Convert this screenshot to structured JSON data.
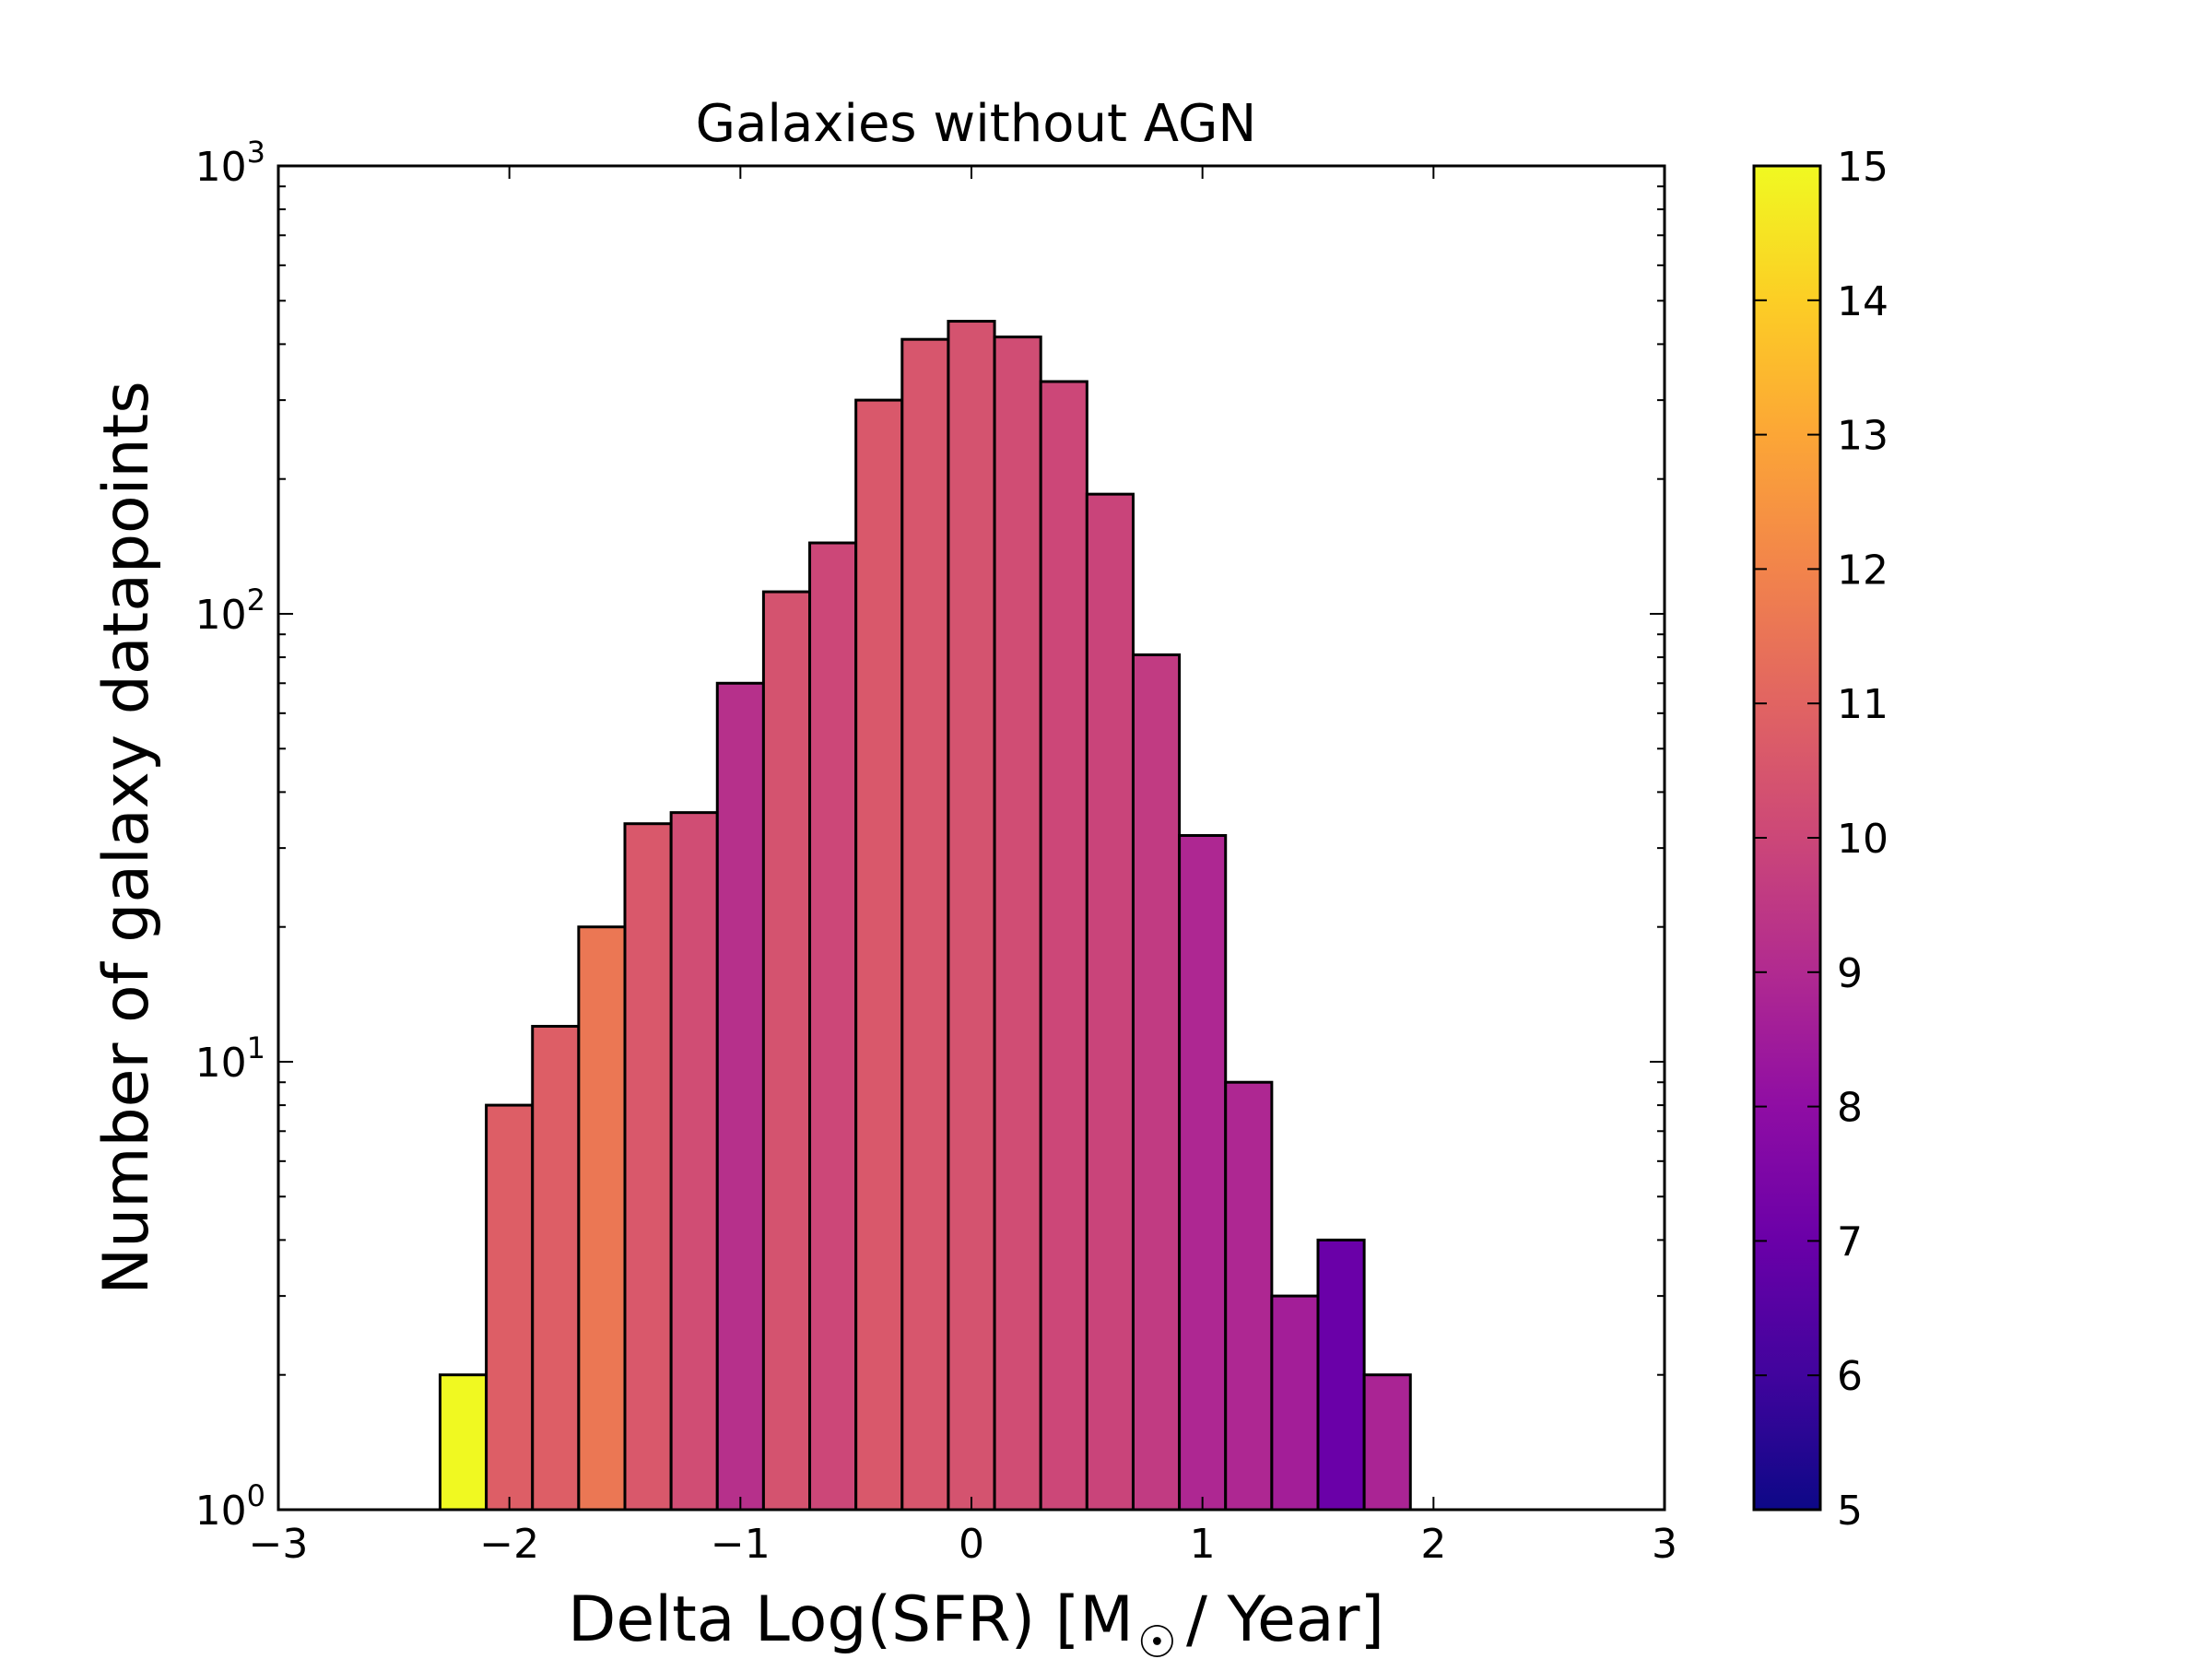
{
  "chart_data": {
    "type": "bar",
    "title": "Galaxies without AGN",
    "xlabel": "Delta Log(SFR) [M",
    "xlabel_symbol": "☉",
    "xlabel_suffix": "/ Year]",
    "ylabel": "Number of galaxy datapoints",
    "yscale": "log",
    "xlim": [
      -3,
      3
    ],
    "ylim": [
      1,
      1000
    ],
    "xticks": [
      -3,
      -2,
      -1,
      0,
      1,
      2,
      3
    ],
    "xtick_labels": [
      "−3",
      "−2",
      "−1",
      "0",
      "1",
      "2",
      "3"
    ],
    "yticks": [
      1,
      10,
      100,
      1000
    ],
    "ytick_labels": [
      {
        "base": "10",
        "exp": "0"
      },
      {
        "base": "10",
        "exp": "1"
      },
      {
        "base": "10",
        "exp": "2"
      },
      {
        "base": "10",
        "exp": "3"
      }
    ],
    "bins": [
      {
        "x0": -2.3,
        "x1": -2.1,
        "count": 2,
        "color_value": 15.0
      },
      {
        "x0": -2.1,
        "x1": -1.9,
        "count": 8,
        "color_value": 10.8
      },
      {
        "x0": -1.9,
        "x1": -1.7,
        "count": 12,
        "color_value": 10.8
      },
      {
        "x0": -1.7,
        "x1": -1.5,
        "count": 20,
        "color_value": 11.6
      },
      {
        "x0": -1.5,
        "x1": -1.3,
        "count": 34,
        "color_value": 10.6
      },
      {
        "x0": -1.3,
        "x1": -1.1,
        "count": 36,
        "color_value": 10.2
      },
      {
        "x0": -1.1,
        "x1": -0.9,
        "count": 70,
        "color_value": 9.2
      },
      {
        "x0": -0.9,
        "x1": -0.7,
        "count": 112,
        "color_value": 10.4
      },
      {
        "x0": -0.7,
        "x1": -0.5,
        "count": 144,
        "color_value": 10.0
      },
      {
        "x0": -0.5,
        "x1": -0.3,
        "count": 300,
        "color_value": 10.6
      },
      {
        "x0": -0.3,
        "x1": -0.1,
        "count": 410,
        "color_value": 10.5
      },
      {
        "x0": -0.1,
        "x1": 0.1,
        "count": 450,
        "color_value": 10.4
      },
      {
        "x0": 0.1,
        "x1": 0.3,
        "count": 415,
        "color_value": 10.2
      },
      {
        "x0": 0.3,
        "x1": 0.5,
        "count": 330,
        "color_value": 10.0
      },
      {
        "x0": 0.5,
        "x1": 0.7,
        "count": 185,
        "color_value": 9.9
      },
      {
        "x0": 0.7,
        "x1": 0.9,
        "count": 81,
        "color_value": 9.6
      },
      {
        "x0": 0.9,
        "x1": 1.1,
        "count": 32,
        "color_value": 8.9
      },
      {
        "x0": 1.1,
        "x1": 1.3,
        "count": 9,
        "color_value": 8.9
      },
      {
        "x0": 1.3,
        "x1": 1.5,
        "count": 3,
        "color_value": 8.6
      },
      {
        "x0": 1.5,
        "x1": 1.7,
        "count": 4,
        "color_value": 7.0
      },
      {
        "x0": 1.7,
        "x1": 1.9,
        "count": 2,
        "color_value": 8.8
      }
    ],
    "colorbar": {
      "colormap": "plasma",
      "min": 5,
      "max": 15,
      "ticks": [
        "5",
        "6",
        "7",
        "8",
        "9",
        "10",
        "11",
        "12",
        "13",
        "14",
        "15"
      ]
    },
    "grid": false,
    "legend": "none"
  }
}
